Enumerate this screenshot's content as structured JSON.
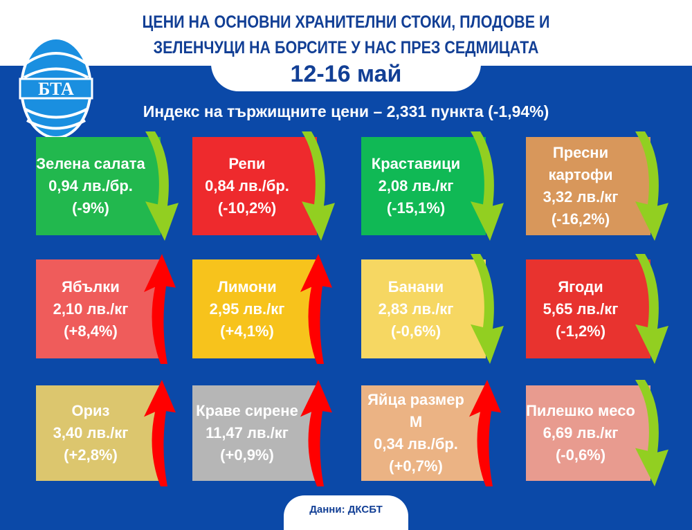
{
  "header": {
    "title_line1": "ЦЕНИ НА ОСНОВНИ ХРАНИТЕЛНИ СТОКИ, ПЛОДОВЕ И",
    "title_line2": "ЗЕЛЕНЧУЦИ НА БОРСИТЕ У НАС ПРЕЗ СЕДМИЦАТА",
    "date": "12-16 май",
    "logo": "БТА"
  },
  "index": "Индекс на тържищните цени – 2,331 пункта (-1,94%)",
  "colors": {
    "background": "#0b49a8",
    "up": "#ff0000",
    "down": "#92cf21"
  },
  "items": [
    {
      "name": "Зелена салата",
      "price": "0,94 лв./бр.",
      "change": "(-9%)",
      "trend": "down",
      "color": "#22b84e"
    },
    {
      "name": "Репи",
      "price": "0,84 лв./бр.",
      "change": "(-10,2%)",
      "trend": "down",
      "color": "#ee2a2d"
    },
    {
      "name": "Краставици",
      "price": "2,08 лв./кг",
      "change": "(-15,1%)",
      "trend": "down",
      "color": "#10b955"
    },
    {
      "name": "Пресни картофи",
      "price": "3,32 лв./кг",
      "change": "(-16,2%)",
      "trend": "down",
      "color": "#d8975b"
    },
    {
      "name": "Ябълки",
      "price": "2,10 лв./кг",
      "change": "(+8,4%)",
      "trend": "up",
      "color": "#ef5c5b"
    },
    {
      "name": "Лимони",
      "price": "2,95 лв./кг",
      "change": "(+4,1%)",
      "trend": "up",
      "color": "#f7c31c"
    },
    {
      "name": "Банани",
      "price": "2,83 лв./кг",
      "change": "(-0,6%)",
      "trend": "down",
      "color": "#f6d762"
    },
    {
      "name": "Ягоди",
      "price": "5,65 лв./кг",
      "change": "(-1,2%)",
      "trend": "down",
      "color": "#e8332f"
    },
    {
      "name": "Ориз",
      "price": "3,40 лв./кг",
      "change": "(+2,8%)",
      "trend": "up",
      "color": "#dcc66e"
    },
    {
      "name": "Краве сирене",
      "price": "11,47 лв./кг",
      "change": "(+0,9%)",
      "trend": "up",
      "color": "#b6b6b6"
    },
    {
      "name": "Яйца размер М",
      "price": "0,34 лв./бр.",
      "change": "(+0,7%)",
      "trend": "up",
      "color": "#ebb384"
    },
    {
      "name": "Пилешко месо",
      "price": "6,69 лв./кг",
      "change": "(-0,6%)",
      "trend": "down",
      "color": "#e89b8f"
    }
  ],
  "footer": "Данни: ДКСБТ"
}
